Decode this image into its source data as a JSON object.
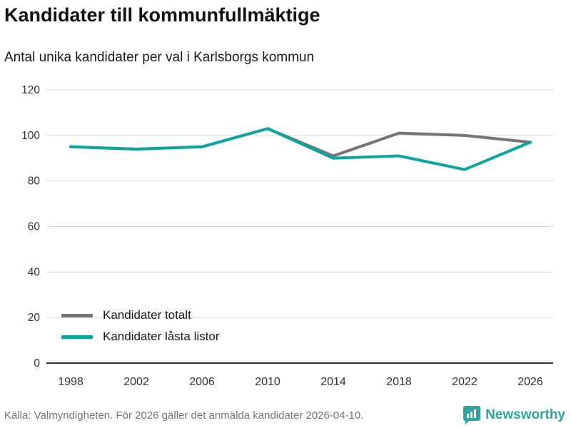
{
  "header": {
    "title": "Kandidater till kommunfullmäktige",
    "subtitle": "Antal unika kandidater per val i Karlsborgs kommun"
  },
  "chart_data": {
    "type": "line",
    "categories": [
      "1998",
      "2002",
      "2006",
      "2010",
      "2014",
      "2018",
      "2022",
      "2026"
    ],
    "series": [
      {
        "name": "Kandidater totalt",
        "color": "#757575",
        "values": [
          95,
          94,
          95,
          103,
          91,
          101,
          100,
          97
        ]
      },
      {
        "name": "Kandidater låsta listor",
        "color": "#0ba6a0",
        "values": [
          95,
          94,
          95,
          103,
          90,
          91,
          85,
          97
        ]
      }
    ],
    "ylim": [
      0,
      120
    ],
    "yticks": [
      0,
      20,
      40,
      60,
      80,
      100,
      120
    ],
    "grid": true,
    "legend_position": "inside-bottom-left",
    "grid_color": "#d9d9d9",
    "axis_color": "#333333",
    "tick_label_color": "#333333"
  },
  "footer": {
    "source": "Källa: Valmyndigheten. För 2026 gäller det anmälda kandidater 2026-04-10.",
    "brand": "Newsworthy",
    "brand_color": "#2ba7a0",
    "brand_icon": "bar-chart-badge-icon"
  }
}
